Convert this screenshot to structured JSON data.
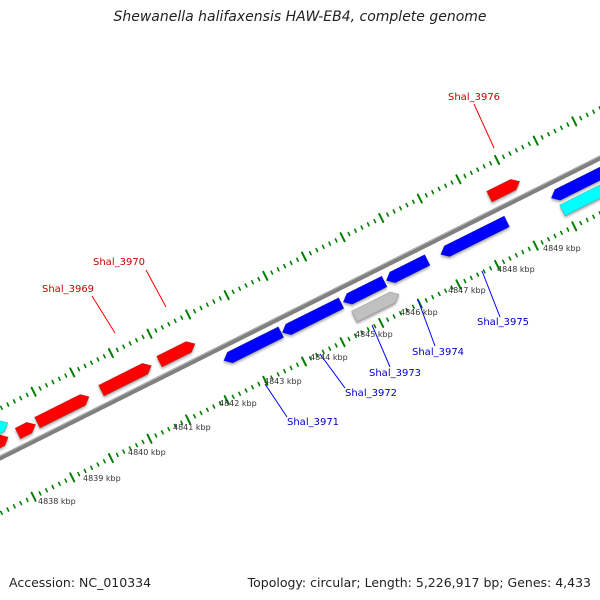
{
  "title": "Shewanella halifaxensis HAW-EB4, complete genome",
  "footer": {
    "accession": "Accession: NC_010334",
    "summary": "Topology: circular; Length: 5,226,917 bp; Genes: 4,433"
  },
  "colors": {
    "forward": "#ff0000",
    "reverse": "#0000ff",
    "rna": "#00ffff",
    "other": "#c0c0c0",
    "backbone": "#808080",
    "ticks": "#008000",
    "forward_label": "#cc0000",
    "reverse_label": "#0000cc"
  },
  "scale": {
    "unit": "kbp",
    "ticks": [
      4838,
      4839,
      4840,
      4841,
      4842,
      4843,
      4844,
      4845,
      4846,
      4847,
      4848,
      4849
    ]
  },
  "scale_labels": [
    "4838 kbp",
    "4839 kbp",
    "4840 kbp",
    "4841 kbp",
    "4842 kbp",
    "4843 kbp",
    "4844 kbp",
    "4845 kbp",
    "4846 kbp",
    "4847 kbp",
    "4848 kbp",
    "4849 kbp"
  ],
  "genes": [
    {
      "label": "Shal_3969",
      "strand": "forward"
    },
    {
      "label": "Shal_3970",
      "strand": "forward"
    },
    {
      "label": "Shal_3971",
      "strand": "reverse"
    },
    {
      "label": "Shal_3972",
      "strand": "reverse"
    },
    {
      "label": "Shal_3973",
      "strand": "reverse"
    },
    {
      "label": "Shal_3974",
      "strand": "reverse"
    },
    {
      "label": "Shal_3975",
      "strand": "reverse"
    },
    {
      "label": "Shal_3976",
      "strand": "forward"
    }
  ]
}
